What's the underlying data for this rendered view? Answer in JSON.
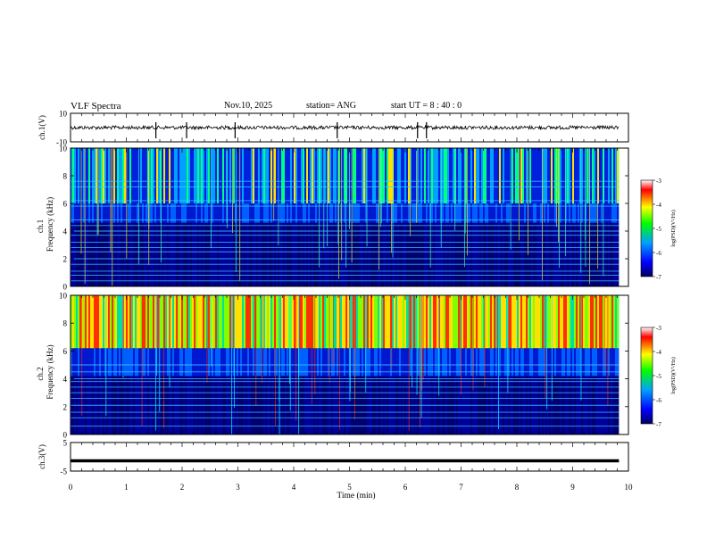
{
  "header": {
    "title": "VLF Spectra",
    "date": "Nov.10, 2025",
    "station": "station= ANG",
    "start": "start  UT =   8  : 40 : 0"
  },
  "colors": {
    "waveform": "#000000",
    "background": "#ffffff"
  },
  "colorbar": {
    "label": "log(PSD)(V²/Hz)",
    "ticks": [
      "-3",
      "-4",
      "-5",
      "-6",
      "-7"
    ],
    "stops": [
      "#000060",
      "#0000ff",
      "#00a0ff",
      "#00ff00",
      "#ffff00",
      "#ff0000",
      "#ffffff"
    ]
  },
  "chart_data": [
    {
      "type": "line",
      "panel": "ch1",
      "ylabel": "ch.1(V)",
      "ylim": [
        -10,
        10
      ],
      "ytick_labels": [
        "10",
        "-10"
      ],
      "x": [
        0,
        9.83
      ],
      "approx_level": 0,
      "spike_times_min": [
        1.53,
        2.08,
        2.95,
        4.78,
        6.22,
        6.38
      ]
    },
    {
      "type": "heatmap",
      "panel": "ch1-spectrogram",
      "ylabel_top": "ch.1",
      "ylabel": "Frequency  (kHz)",
      "ylim": [
        0,
        10
      ],
      "ytick_labels": [
        "10",
        "8",
        "6",
        "4",
        "2",
        "0"
      ],
      "xlim": [
        0,
        10
      ],
      "data_end_min": 9.83,
      "clim": [
        -7,
        -3
      ],
      "band_tops_khz": {
        "low": 4.6,
        "mid": 6.0
      },
      "line_frequencies_khz": [
        0.4,
        0.8,
        1.1,
        1.6,
        2.0,
        2.5,
        2.8,
        3.2,
        3.7,
        4.0,
        4.4,
        4.8,
        5.8,
        6.2,
        7.2,
        7.6
      ]
    },
    {
      "type": "heatmap",
      "panel": "ch2-spectrogram",
      "ylabel_top": "ch.2",
      "ylabel": "Frequency  (kHz)",
      "ylim": [
        0,
        10
      ],
      "ytick_labels": [
        "10",
        "8",
        "6",
        "4",
        "2",
        "0"
      ],
      "xlim": [
        0,
        10
      ],
      "data_end_min": 9.83,
      "clim": [
        -7,
        -3
      ],
      "band_tops_khz": {
        "low": 4.2,
        "mid": 6.2
      },
      "line_frequencies_khz": [
        0.6,
        1.2,
        1.6,
        2.1,
        2.6,
        3.0,
        3.4,
        3.8,
        4.0,
        4.5,
        5.0
      ]
    },
    {
      "type": "line",
      "panel": "ch3",
      "ylabel": "ch.3(V)",
      "ylim": [
        -5,
        5
      ],
      "ytick_labels": [
        "5",
        "-5"
      ],
      "x": [
        0,
        9.83
      ],
      "y": [
        -1.4,
        -1.4
      ]
    }
  ],
  "xaxis": {
    "label": "Time  (min)",
    "xlim": [
      0,
      10
    ],
    "tick_labels": [
      "0",
      "1",
      "2",
      "3",
      "4",
      "5",
      "6",
      "7",
      "8",
      "9",
      "10"
    ]
  }
}
